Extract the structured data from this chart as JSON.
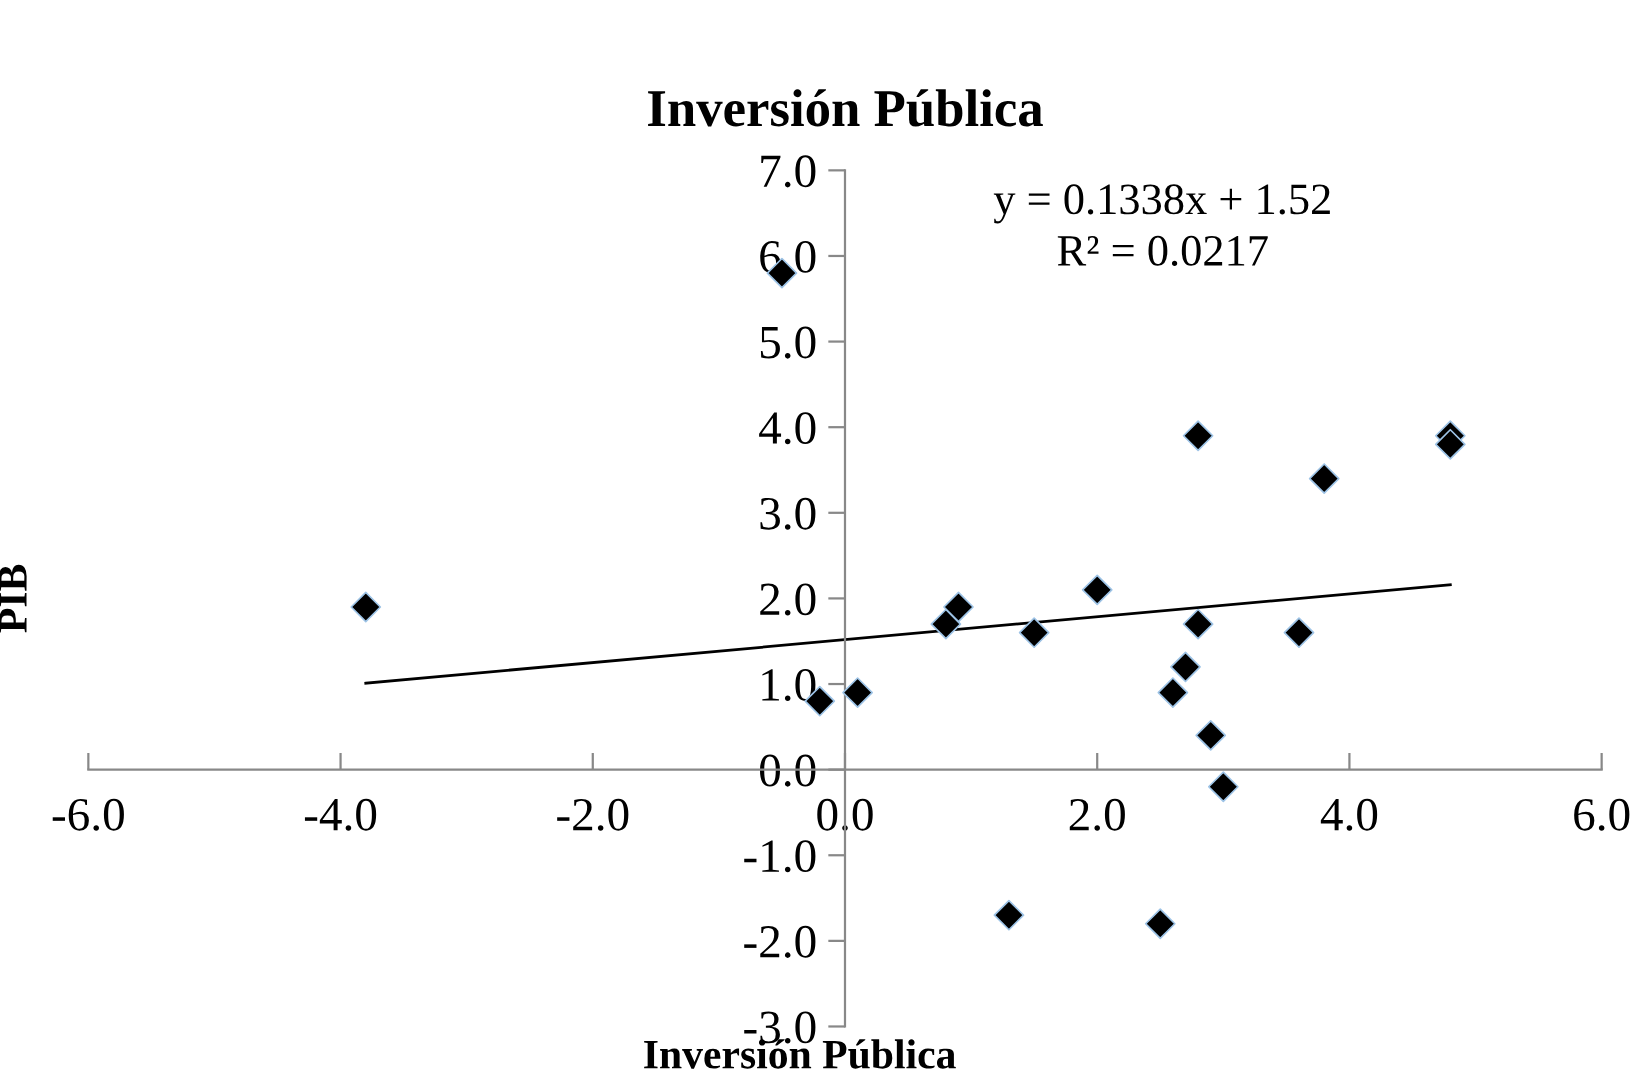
{
  "chart_data": {
    "type": "scatter",
    "title": "Inversión Pública",
    "xlabel": "Inversión Pública",
    "ylabel": "PIB",
    "series": [
      {
        "color": "#000000",
        "marker": "diamond",
        "x": [
          -3.8,
          -0.5,
          -0.2,
          0.1,
          0.8,
          0.9,
          1.5,
          2.0,
          2.8,
          2.8,
          2.7,
          2.6,
          2.9,
          3.0,
          3.6,
          3.8,
          4.8,
          4.8,
          1.3,
          2.5
        ],
        "values": [
          1.9,
          5.8,
          0.8,
          0.9,
          1.7,
          1.9,
          1.6,
          2.1,
          3.9,
          1.7,
          1.2,
          0.9,
          0.4,
          -0.2,
          1.6,
          3.4,
          3.9,
          3.8,
          -1.7,
          -1.8
        ]
      },
      {
        "type": "line",
        "color": "#000000",
        "marker": "none",
        "line_style": "solid",
        "x": [
          -3.8,
          4.8
        ],
        "values": [
          1.01,
          2.16
        ]
      }
    ],
    "annotations": [
      "y = 0.1338x + 1.52",
      "R² = 0.0217"
    ],
    "xlim": [
      -6,
      6
    ],
    "ylim": [
      -3,
      7
    ],
    "xticks": [
      {
        "value": -6,
        "label": "-6.0"
      },
      {
        "value": -4,
        "label": "-4.0"
      },
      {
        "value": -2,
        "label": "-2.0"
      },
      {
        "value": 0,
        "label": "0.0"
      },
      {
        "value": 2,
        "label": "2.0"
      },
      {
        "value": 4,
        "label": "4.0"
      },
      {
        "value": 6,
        "label": "6.0"
      }
    ],
    "yticks": [
      {
        "value": -3,
        "label": "-3.0"
      },
      {
        "value": -2,
        "label": "-2.0"
      },
      {
        "value": -1,
        "label": "-1.0"
      },
      {
        "value": 0,
        "label": "0.0"
      },
      {
        "value": 1,
        "label": "1.0"
      },
      {
        "value": 2,
        "label": "2.0"
      },
      {
        "value": 3,
        "label": "3.0"
      },
      {
        "value": 4,
        "label": "4.0"
      },
      {
        "value": 5,
        "label": "5.0"
      },
      {
        "value": 6,
        "label": "6.0"
      },
      {
        "value": 7,
        "label": "7.0"
      }
    ],
    "grid": false,
    "legend": false
  }
}
